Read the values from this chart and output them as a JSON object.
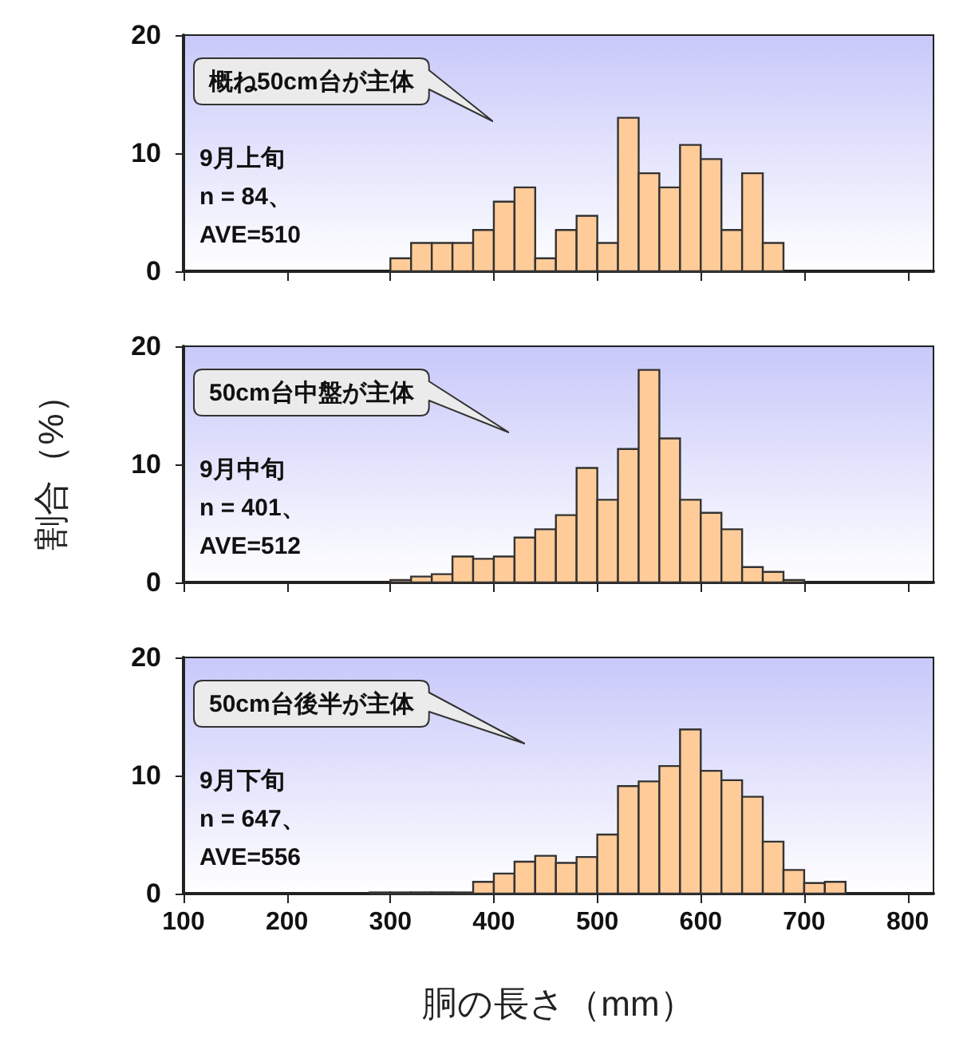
{
  "chart_data": [
    {
      "type": "histogram",
      "bins": [
        300,
        320,
        340,
        360,
        380,
        400,
        420,
        440,
        460,
        480,
        500,
        520,
        540,
        560,
        580,
        600,
        620,
        640,
        660,
        680
      ],
      "values": [
        1.1,
        2.4,
        2.4,
        2.4,
        3.5,
        5.9,
        7.1,
        1.1,
        3.5,
        4.7,
        2.4,
        13.0,
        8.3,
        7.1,
        10.7,
        9.5,
        3.5,
        8.3,
        2.4
      ],
      "color": "#ffcc99",
      "xlim": [
        100,
        825
      ],
      "xticks": [
        100,
        200,
        300,
        400,
        500,
        600,
        700,
        800
      ],
      "ylim": [
        0,
        20
      ],
      "yticks": [
        0,
        10,
        20
      ],
      "grid": false,
      "tick_labels": "y",
      "annotations": [
        "概ね50cm台が主体",
        "9月上旬",
        "n = 84、",
        "AVE=510"
      ]
    },
    {
      "type": "histogram",
      "bins": [
        300,
        320,
        340,
        360,
        380,
        400,
        420,
        440,
        460,
        480,
        500,
        520,
        540,
        560,
        580,
        600,
        620,
        640,
        660,
        680,
        700
      ],
      "values": [
        0.2,
        0.5,
        0.7,
        2.2,
        2.0,
        2.2,
        3.8,
        4.5,
        5.7,
        9.7,
        7.0,
        11.3,
        18.0,
        12.2,
        7.0,
        5.9,
        4.5,
        1.3,
        0.9,
        0.2
      ],
      "color": "#ffcc99",
      "xlim": [
        100,
        825
      ],
      "xticks": [
        100,
        200,
        300,
        400,
        500,
        600,
        700,
        800
      ],
      "ylim": [
        0,
        20
      ],
      "yticks": [
        0,
        10,
        20
      ],
      "grid": false,
      "tick_labels": "y",
      "ylabel": "割合（%）",
      "annotations": [
        "50cm台中盤が主体",
        "9月中旬",
        "n = 401、",
        "AVE=512"
      ]
    },
    {
      "type": "histogram",
      "bins": [
        280,
        300,
        320,
        340,
        360,
        380,
        400,
        420,
        440,
        460,
        480,
        500,
        520,
        540,
        560,
        580,
        600,
        620,
        640,
        660,
        680,
        700,
        720,
        740
      ],
      "values": [
        0.1,
        0.1,
        0.1,
        0.1,
        0.1,
        1.0,
        1.7,
        2.7,
        3.2,
        2.6,
        3.1,
        5.0,
        9.1,
        9.5,
        10.8,
        13.9,
        10.4,
        9.6,
        8.2,
        4.4,
        2.0,
        0.9,
        1.0
      ],
      "color": "#ffcc99",
      "xlim": [
        100,
        825
      ],
      "xticks": [
        100,
        200,
        300,
        400,
        500,
        600,
        700,
        800
      ],
      "ylim": [
        0,
        20
      ],
      "yticks": [
        0,
        10,
        20
      ],
      "grid": false,
      "xlabel": "胴の長さ（mm）",
      "annotations": [
        "50cm台後半が主体",
        "9月下旬",
        "n = 647、",
        "AVE=556"
      ]
    }
  ]
}
